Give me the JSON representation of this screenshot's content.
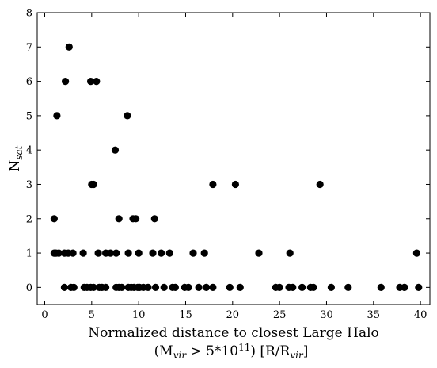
{
  "chart_data": {
    "type": "scatter",
    "title": "",
    "xlabel_line1": "Normalized distance to closest Large Halo",
    "xlabel_line2": "(M",
    "xlabel_line2_sub": "vir",
    "xlabel_line2_mid": " > 5*10",
    "xlabel_line2_sup": "11",
    "xlabel_line2_end": ") [R/R",
    "xlabel_line2_sub2": "vir",
    "xlabel_line2_close": "]",
    "ylabel_main": "N",
    "ylabel_sub": "sat",
    "xlim": [
      -0.8,
      41
    ],
    "ylim": [
      -0.5,
      8
    ],
    "xticks": [
      0,
      5,
      10,
      15,
      20,
      25,
      30,
      35,
      40
    ],
    "yticks": [
      0,
      1,
      2,
      3,
      4,
      5,
      6,
      7,
      8
    ],
    "marker_color": "#000000",
    "grid": false,
    "legend": "none",
    "points": [
      [
        1.0,
        2
      ],
      [
        1.3,
        5
      ],
      [
        2.2,
        6
      ],
      [
        2.6,
        7
      ],
      [
        4.9,
        6
      ],
      [
        5.5,
        6
      ],
      [
        7.5,
        4
      ],
      [
        8.8,
        5
      ],
      [
        5.0,
        3
      ],
      [
        5.2,
        3
      ],
      [
        17.9,
        3
      ],
      [
        20.3,
        3
      ],
      [
        29.3,
        3
      ],
      [
        7.9,
        2
      ],
      [
        9.4,
        2
      ],
      [
        9.7,
        2
      ],
      [
        11.7,
        2
      ],
      [
        1.0,
        1
      ],
      [
        1.2,
        1
      ],
      [
        1.5,
        1
      ],
      [
        2.1,
        1
      ],
      [
        2.5,
        1
      ],
      [
        3.0,
        1
      ],
      [
        4.1,
        1
      ],
      [
        5.7,
        1
      ],
      [
        6.5,
        1
      ],
      [
        7.0,
        1
      ],
      [
        7.6,
        1
      ],
      [
        8.9,
        1
      ],
      [
        10.0,
        1
      ],
      [
        11.5,
        1
      ],
      [
        12.4,
        1
      ],
      [
        13.3,
        1
      ],
      [
        15.8,
        1
      ],
      [
        17.0,
        1
      ],
      [
        22.8,
        1
      ],
      [
        26.1,
        1
      ],
      [
        39.6,
        1
      ],
      [
        2.1,
        0
      ],
      [
        2.8,
        0
      ],
      [
        3.1,
        0
      ],
      [
        4.2,
        0
      ],
      [
        4.5,
        0
      ],
      [
        4.9,
        0
      ],
      [
        5.2,
        0
      ],
      [
        5.8,
        0
      ],
      [
        6.1,
        0
      ],
      [
        6.5,
        0
      ],
      [
        7.6,
        0
      ],
      [
        7.9,
        0
      ],
      [
        8.2,
        0
      ],
      [
        8.9,
        0
      ],
      [
        9.2,
        0
      ],
      [
        9.5,
        0
      ],
      [
        9.9,
        0
      ],
      [
        10.1,
        0
      ],
      [
        10.5,
        0
      ],
      [
        11.0,
        0
      ],
      [
        11.8,
        0
      ],
      [
        12.7,
        0
      ],
      [
        13.6,
        0
      ],
      [
        13.9,
        0
      ],
      [
        14.9,
        0
      ],
      [
        15.3,
        0
      ],
      [
        16.4,
        0
      ],
      [
        17.2,
        0
      ],
      [
        17.9,
        0
      ],
      [
        19.7,
        0
      ],
      [
        20.8,
        0
      ],
      [
        24.6,
        0
      ],
      [
        25.0,
        0
      ],
      [
        26.0,
        0
      ],
      [
        26.4,
        0
      ],
      [
        27.4,
        0
      ],
      [
        28.3,
        0
      ],
      [
        28.6,
        0
      ],
      [
        30.5,
        0
      ],
      [
        32.3,
        0
      ],
      [
        35.8,
        0
      ],
      [
        37.8,
        0
      ],
      [
        38.3,
        0
      ],
      [
        39.8,
        0
      ]
    ]
  }
}
